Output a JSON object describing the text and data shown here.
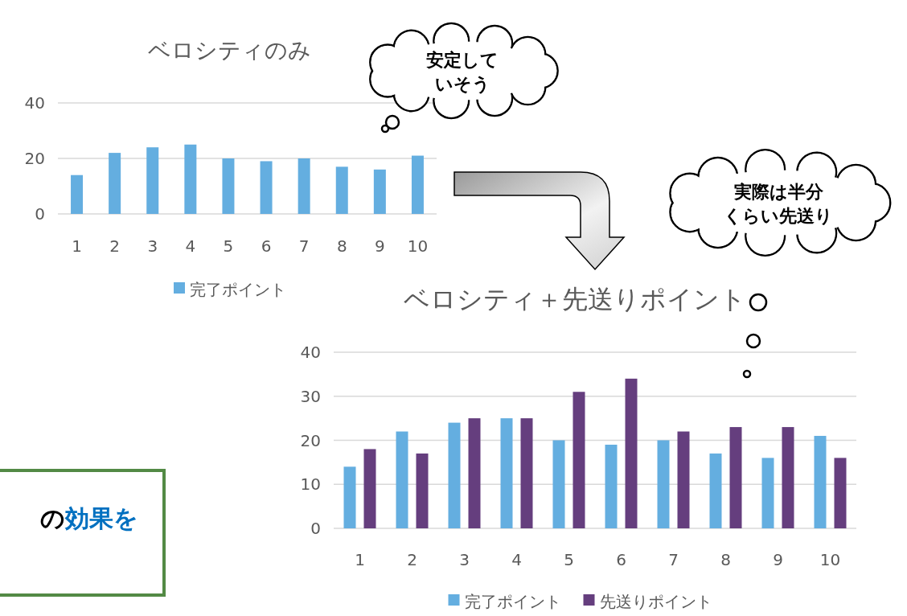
{
  "chart_data": [
    {
      "type": "bar",
      "title": "ベロシティのみ",
      "categories": [
        "1",
        "2",
        "3",
        "4",
        "5",
        "6",
        "7",
        "8",
        "9",
        "10"
      ],
      "series": [
        {
          "name": "完了ポイント",
          "color": "#64aee0",
          "values": [
            14,
            22,
            24,
            25,
            20,
            19,
            20,
            17,
            16,
            21
          ]
        }
      ],
      "ylim": [
        0,
        40
      ],
      "yticks": [
        0,
        20,
        40
      ],
      "grid": "y",
      "legend": "bottom",
      "annotations": [
        "安定していそう"
      ]
    },
    {
      "type": "bar",
      "title": "ベロシティ＋先送りポイント",
      "categories": [
        "1",
        "2",
        "3",
        "4",
        "5",
        "6",
        "7",
        "8",
        "9",
        "10"
      ],
      "series": [
        {
          "name": "完了ポイント",
          "color": "#64aee0",
          "values": [
            14,
            22,
            24,
            25,
            20,
            19,
            20,
            17,
            16,
            21
          ]
        },
        {
          "name": "先送りポイント",
          "color": "#653e7e",
          "values": [
            18,
            17,
            25,
            25,
            31,
            34,
            22,
            23,
            23,
            16
          ]
        }
      ],
      "ylim": [
        0,
        40
      ],
      "yticks": [
        0,
        10,
        20,
        30,
        40
      ],
      "grid": "y",
      "legend": "bottom",
      "annotations": [
        "実際は半分くらい先送り"
      ]
    },
    {
      "type": "other",
      "annotations": [
        "の",
        "効果を"
      ]
    }
  ]
}
